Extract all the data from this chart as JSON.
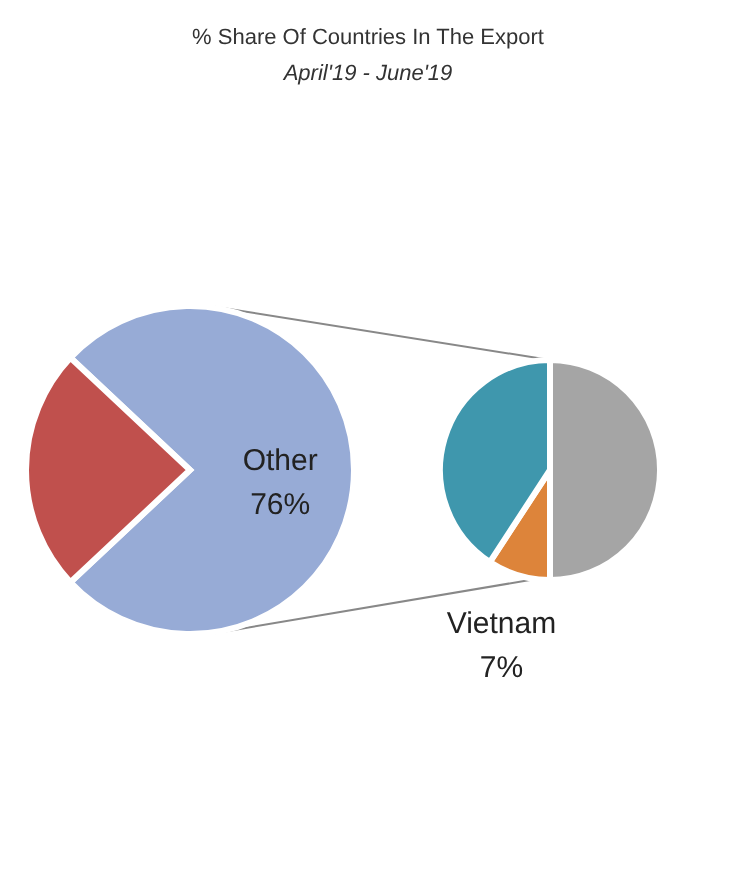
{
  "chart_data": [
    {
      "type": "pie",
      "title": "% Share Of Countries In The Export",
      "subtitle": "April'19 - June'19",
      "categories": [
        "Other",
        null
      ],
      "values": [
        76,
        24
      ],
      "colors": [
        "#97abd6",
        "#c0504d"
      ],
      "value_labels": [
        "76%",
        null
      ]
    },
    {
      "type": "pie",
      "categories": [
        "Vietnam",
        null,
        null
      ],
      "values": [
        7,
        31,
        38
      ],
      "colors": [
        "#dd843a",
        "#3f97ad",
        "#a5a5a5"
      ],
      "value_labels": [
        "7%",
        null,
        null
      ]
    }
  ]
}
